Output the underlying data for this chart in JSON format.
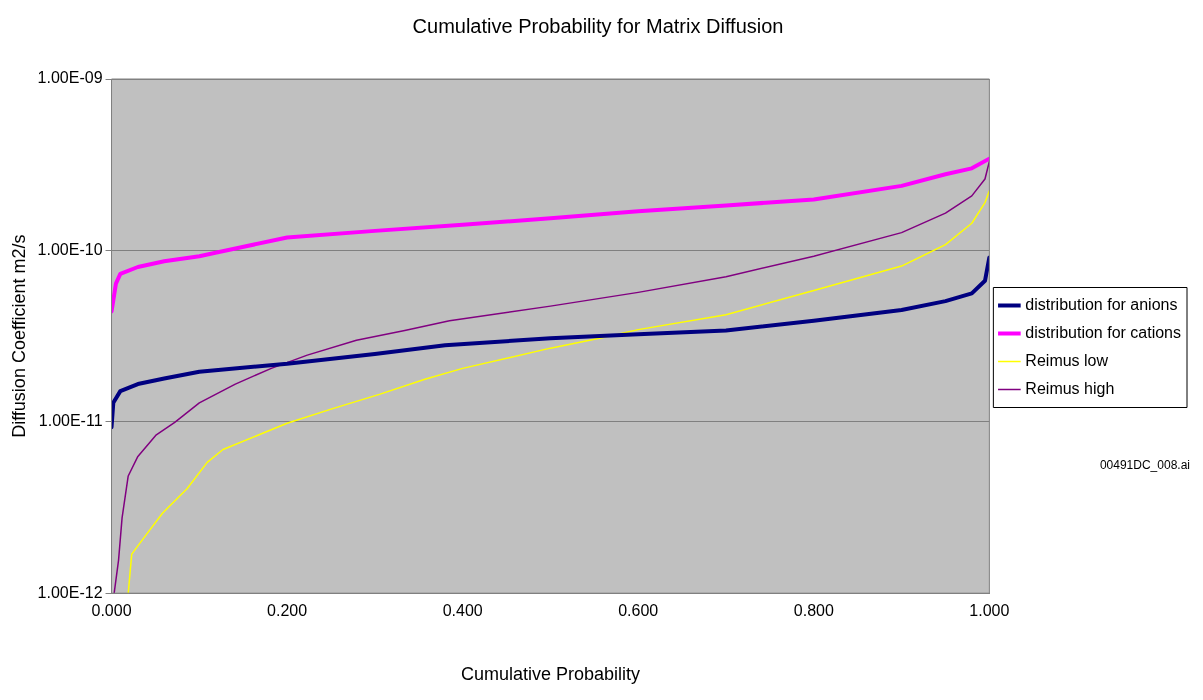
{
  "chart_data": {
    "type": "line",
    "title": "Cumulative Probability for Matrix Diffusion",
    "xlabel": "Cumulative Probability",
    "ylabel": "Diffusion Coefficient m2/s",
    "xlim": [
      0,
      1
    ],
    "xticks": [
      {
        "value": 0,
        "label": "0.000"
      },
      {
        "value": 0.2,
        "label": "0.200"
      },
      {
        "value": 0.4,
        "label": "0.400"
      },
      {
        "value": 0.6,
        "label": "0.600"
      },
      {
        "value": 0.8,
        "label": "0.800"
      },
      {
        "value": 1,
        "label": "1.000"
      }
    ],
    "ylim": [
      1e-12,
      1e-09
    ],
    "yticks": [
      {
        "value": 1e-12,
        "label": "1.00E-12"
      },
      {
        "value": 1e-11,
        "label": "1.00E-11"
      },
      {
        "value": 1e-10,
        "label": "1.00E-10"
      },
      {
        "value": 1e-09,
        "label": "1.00E-09"
      }
    ],
    "log": "y",
    "grid": "y",
    "legend": "right",
    "marker": "none",
    "line_style": "solid",
    "annotations": [
      "00491DC_008.ai"
    ],
    "series": [
      {
        "name": "distribution for anions",
        "color": "#000080",
        "x": [
          0,
          0.002,
          0.01,
          0.03,
          0.06,
          0.1,
          0.2,
          0.3,
          0.38,
          0.5,
          0.6,
          0.7,
          0.8,
          0.9,
          0.95,
          0.98,
          0.995,
          1
        ],
        "values": [
          9.3e-12,
          1.29e-11,
          1.51e-11,
          1.66e-11,
          1.79e-11,
          1.96e-11,
          2.18e-11,
          2.49e-11,
          2.8e-11,
          3.07e-11,
          3.24e-11,
          3.41e-11,
          3.89e-11,
          4.49e-11,
          5.06e-11,
          5.61e-11,
          6.65e-11,
          9.1e-11
        ]
      },
      {
        "name": "distribution for cations",
        "color": "#ff00ff",
        "x": [
          0,
          0.005,
          0.01,
          0.03,
          0.06,
          0.1,
          0.2,
          0.3,
          0.4,
          0.5,
          0.6,
          0.7,
          0.8,
          0.9,
          0.95,
          0.98,
          1
        ],
        "values": [
          4.4e-11,
          6.4e-11,
          7.3e-11,
          8e-11,
          8.65e-11,
          9.25e-11,
          1.19e-10,
          1.3e-10,
          1.41e-10,
          1.54e-10,
          1.69e-10,
          1.83e-10,
          1.98e-10,
          2.38e-10,
          2.78e-10,
          3.01e-10,
          3.43e-10
        ]
      },
      {
        "name": "Reimus low",
        "color": "#ffff00",
        "x": [
          0.019,
          0.023,
          0.037,
          0.058,
          0.086,
          0.109,
          0.127,
          0.168,
          0.2,
          0.251,
          0.306,
          0.357,
          0.4,
          0.5,
          0.56,
          0.6,
          0.7,
          0.8,
          0.9,
          0.95,
          0.98,
          0.995,
          1
        ],
        "values": [
          1e-12,
          1.69e-12,
          2.11e-12,
          2.93e-12,
          4.07e-12,
          5.8e-12,
          6.89e-12,
          8.4e-12,
          9.8e-12,
          1.19e-11,
          1.45e-11,
          1.77e-11,
          2.05e-11,
          2.69e-11,
          3.1e-11,
          3.45e-11,
          4.21e-11,
          5.84e-11,
          8.1e-11,
          1.08e-10,
          1.44e-10,
          1.9e-10,
          2.23e-10
        ]
      },
      {
        "name": "Reimus high",
        "color": "#800080",
        "x": [
          0.003,
          0.008,
          0.012,
          0.019,
          0.03,
          0.051,
          0.072,
          0.1,
          0.141,
          0.182,
          0.223,
          0.279,
          0.334,
          0.385,
          0.5,
          0.6,
          0.7,
          0.8,
          0.9,
          0.95,
          0.98,
          0.995,
          1
        ],
        "values": [
          1e-12,
          1.56e-12,
          2.75e-12,
          4.83e-12,
          6.28e-12,
          8.4e-12,
          9.93e-12,
          1.29e-11,
          1.66e-11,
          2.05e-11,
          2.45e-11,
          2.99e-11,
          3.41e-11,
          3.89e-11,
          4.73e-11,
          5.69e-11,
          7.02e-11,
          9.25e-11,
          1.27e-10,
          1.65e-10,
          2.08e-10,
          2.61e-10,
          3.3e-10
        ]
      }
    ]
  }
}
